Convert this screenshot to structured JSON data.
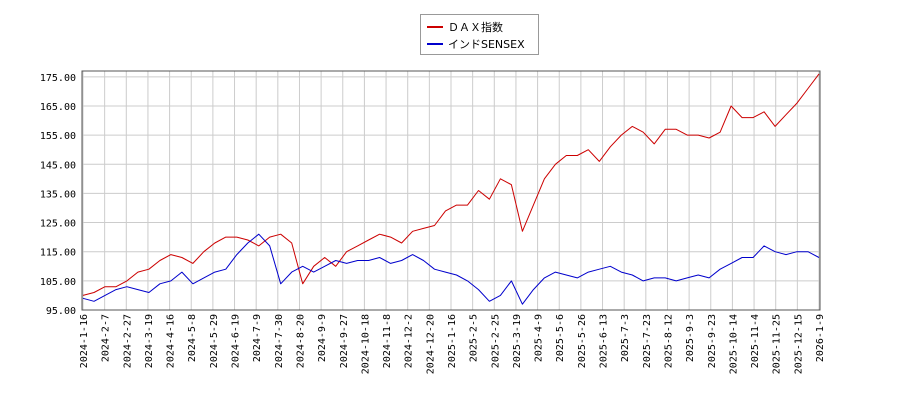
{
  "chart_data": {
    "type": "line",
    "legend_position": "top-center",
    "grid": true,
    "ylim": [
      95,
      177
    ],
    "y_ticks": [
      "95.00",
      "105.00",
      "115.00",
      "125.00",
      "135.00",
      "145.00",
      "155.00",
      "165.00",
      "175.00"
    ],
    "x_ticks": [
      "2024-1-16",
      "2024-2-7",
      "2024-2-27",
      "2024-3-19",
      "2024-4-16",
      "2024-5-8",
      "2024-5-29",
      "2024-6-19",
      "2024-7-9",
      "2024-7-30",
      "2024-8-20",
      "2024-9-9",
      "2024-9-27",
      "2024-10-18",
      "2024-11-8",
      "2024-12-2",
      "2024-12-20",
      "2025-1-16",
      "2025-2-5",
      "2025-2-25",
      "2025-3-19",
      "2025-4-9",
      "2025-5-6",
      "2025-5-26",
      "2025-6-13",
      "2025-7-3",
      "2025-7-23",
      "2025-8-12",
      "2025-9-3",
      "2025-9-23",
      "2025-10-14",
      "2025-11-4",
      "2025-11-25",
      "2025-12-15",
      "2026-1-9"
    ],
    "series": [
      {
        "name": "ＤＡＸ指数",
        "color": "#cc0000",
        "values": [
          100,
          101,
          103,
          103,
          105,
          108,
          109,
          112,
          114,
          113,
          111,
          115,
          118,
          120,
          120,
          119,
          117,
          120,
          121,
          118,
          104,
          110,
          113,
          110,
          115,
          117,
          119,
          121,
          120,
          118,
          122,
          123,
          124,
          129,
          131,
          131,
          136,
          133,
          140,
          138,
          122,
          131,
          140,
          145,
          148,
          148,
          150,
          146,
          151,
          155,
          158,
          156,
          152,
          157,
          157,
          155,
          155,
          154,
          156,
          165,
          161,
          161,
          163,
          158,
          162,
          166,
          171,
          176
        ]
      },
      {
        "name": "インドSENSEX",
        "color": "#0000cc",
        "values": [
          99,
          98,
          100,
          102,
          103,
          102,
          101,
          104,
          105,
          108,
          104,
          106,
          108,
          109,
          114,
          118,
          121,
          117,
          104,
          108,
          110,
          108,
          110,
          112,
          111,
          112,
          112,
          113,
          111,
          112,
          114,
          112,
          109,
          108,
          107,
          105,
          102,
          98,
          100,
          105,
          97,
          102,
          106,
          108,
          107,
          106,
          108,
          109,
          110,
          108,
          107,
          105,
          106,
          106,
          105,
          106,
          107,
          106,
          109,
          111,
          113,
          113,
          117,
          115,
          114,
          115,
          115,
          113
        ]
      }
    ]
  }
}
